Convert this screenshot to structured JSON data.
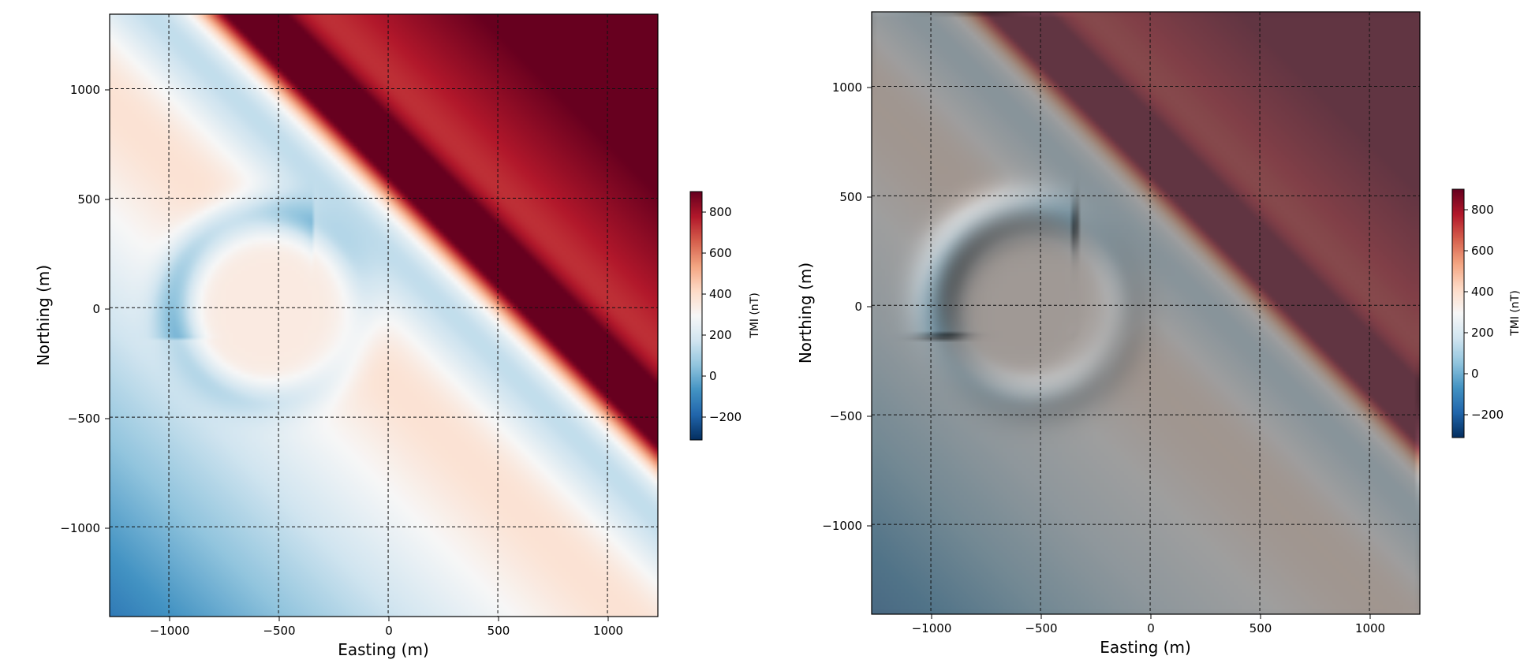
{
  "chart_data": [
    {
      "type": "heatmap",
      "title": "",
      "xlabel": "Easting (m)",
      "ylabel": "Northing (m)",
      "xlim": [
        -1270,
        1230
      ],
      "ylim": [
        -1410,
        1340
      ],
      "xticks": [
        -1000,
        -500,
        0,
        500,
        1000
      ],
      "yticks": [
        1000,
        500,
        0,
        -500,
        -1000
      ],
      "xtick_labels": [
        "−1000",
        "−500",
        "0",
        "500",
        "1000"
      ],
      "ytick_labels": [
        "1000",
        "500",
        "0",
        "−500",
        "−1000"
      ],
      "grid": true,
      "colormap": "RdBu_r",
      "shading": "none",
      "colorbar": {
        "label": "TMI (nT)",
        "range": [
          -300,
          910
        ],
        "ticks": [
          800,
          600,
          400,
          200,
          0,
          -200
        ],
        "tick_labels": [
          "800",
          "600",
          "400",
          "200",
          "0",
          "−200"
        ]
      },
      "features": {
        "regional_gradient": "low to the southwest, high to the northeast",
        "dike": {
          "orientation": "NW-SE",
          "peak_nT": 900
        },
        "sphere_anomaly": {
          "center": [
            -550,
            0
          ],
          "radius": 500
        }
      }
    },
    {
      "type": "heatmap",
      "title": "",
      "xlabel": "Easting (m)",
      "ylabel": "Northing (m)",
      "xlim": [
        -1270,
        1230
      ],
      "ylim": [
        -1410,
        1340
      ],
      "xticks": [
        -1000,
        -500,
        0,
        500,
        1000
      ],
      "yticks": [
        1000,
        500,
        0,
        -500,
        -1000
      ],
      "xtick_labels": [
        "−1000",
        "−500",
        "0",
        "500",
        "1000"
      ],
      "ytick_labels": [
        "1000",
        "500",
        "0",
        "−500",
        "−1000"
      ],
      "grid": true,
      "colormap": "RdBu_r",
      "shading": "hillshade",
      "colorbar": {
        "label": "TMI (nT)",
        "range": [
          -300,
          910
        ],
        "ticks": [
          800,
          600,
          400,
          200,
          0,
          -200
        ],
        "tick_labels": [
          "800",
          "600",
          "400",
          "200",
          "0",
          "−200"
        ]
      },
      "features": {
        "regional_gradient": "low to the southwest, high to the northeast",
        "dike": {
          "orientation": "NW-SE",
          "peak_nT": 900
        },
        "sphere_anomaly": {
          "center": [
            -550,
            0
          ],
          "radius": 500
        }
      }
    }
  ]
}
